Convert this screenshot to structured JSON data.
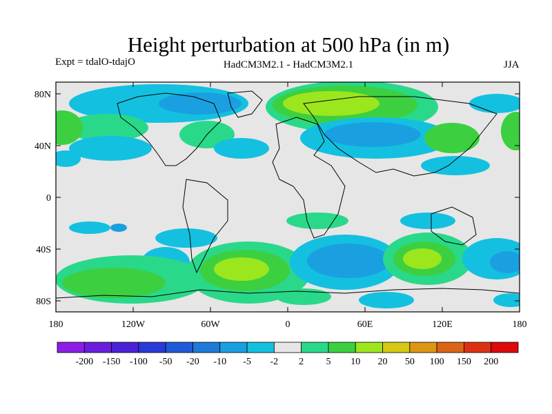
{
  "figure": {
    "title": "Height perturbation at 500 hPa (in m)",
    "expt": "Expt = tdalO-tdajO",
    "models": "HadCM3M2.1 - HadCM3M2.1",
    "season": "JJA"
  },
  "axes": {
    "lat_ticks": [
      "80N",
      "40N",
      "0",
      "40S",
      "80S"
    ],
    "lon_ticks": [
      "180",
      "120W",
      "60W",
      "0",
      "60E",
      "120E",
      "180"
    ]
  },
  "colorbar": {
    "labels": [
      "-200",
      "-150",
      "-100",
      "-50",
      "-20",
      "-10",
      "-5",
      "-2",
      "2",
      "5",
      "10",
      "20",
      "50",
      "100",
      "150",
      "200"
    ],
    "colors": [
      "#8c1ee6",
      "#6a1edc",
      "#4a22d6",
      "#2a3ad8",
      "#1f5ad8",
      "#1e7ad8",
      "#1aa0e0",
      "#14c0e0",
      "#e6e6e6",
      "#2ad88a",
      "#3cd040",
      "#9ce61e",
      "#d6c814",
      "#dc9614",
      "#dc6414",
      "#dc3214",
      "#dc0a0a"
    ]
  },
  "map_colors": {
    "neutral": "#e6e6e6",
    "neg_weak": "#14c0e0",
    "neg_mid": "#1aa0e0",
    "neg_strong": "#1e7ad8",
    "pos_weak": "#2ad88a",
    "pos_mid": "#3cd040",
    "pos_strong": "#9ce61e",
    "pos_peak": "#d6c814"
  }
}
